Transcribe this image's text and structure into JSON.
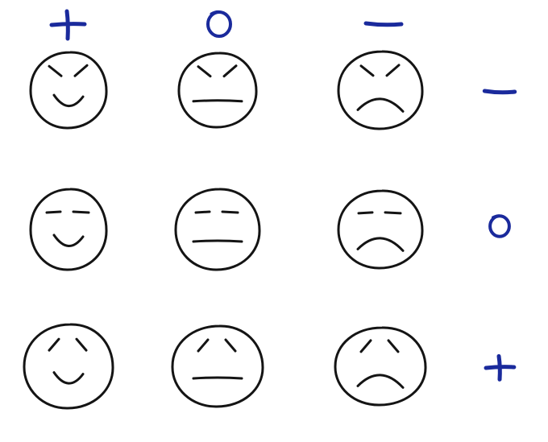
{
  "colors": {
    "background": "#ffffff",
    "face_ink": "#141414",
    "symbol_ink": "#1a2a9c"
  },
  "column_headers": [
    {
      "symbol": "plus",
      "label": "+"
    },
    {
      "symbol": "circle",
      "label": "o"
    },
    {
      "symbol": "minus",
      "label": "−"
    }
  ],
  "row_markers": [
    {
      "symbol": "minus",
      "label": "−"
    },
    {
      "symbol": "circle",
      "label": "o"
    },
    {
      "symbol": "plus",
      "label": "+"
    }
  ],
  "grid": {
    "rows": [
      [
        {
          "mouth": "smile",
          "brows": "angry"
        },
        {
          "mouth": "flat",
          "brows": "angry"
        },
        {
          "mouth": "frown",
          "brows": "angry"
        }
      ],
      [
        {
          "mouth": "smile",
          "brows": "neutral"
        },
        {
          "mouth": "flat",
          "brows": "neutral"
        },
        {
          "mouth": "frown",
          "brows": "neutral"
        }
      ],
      [
        {
          "mouth": "smile",
          "brows": "sad"
        },
        {
          "mouth": "flat",
          "brows": "sad"
        },
        {
          "mouth": "frown",
          "brows": "sad"
        }
      ]
    ]
  }
}
